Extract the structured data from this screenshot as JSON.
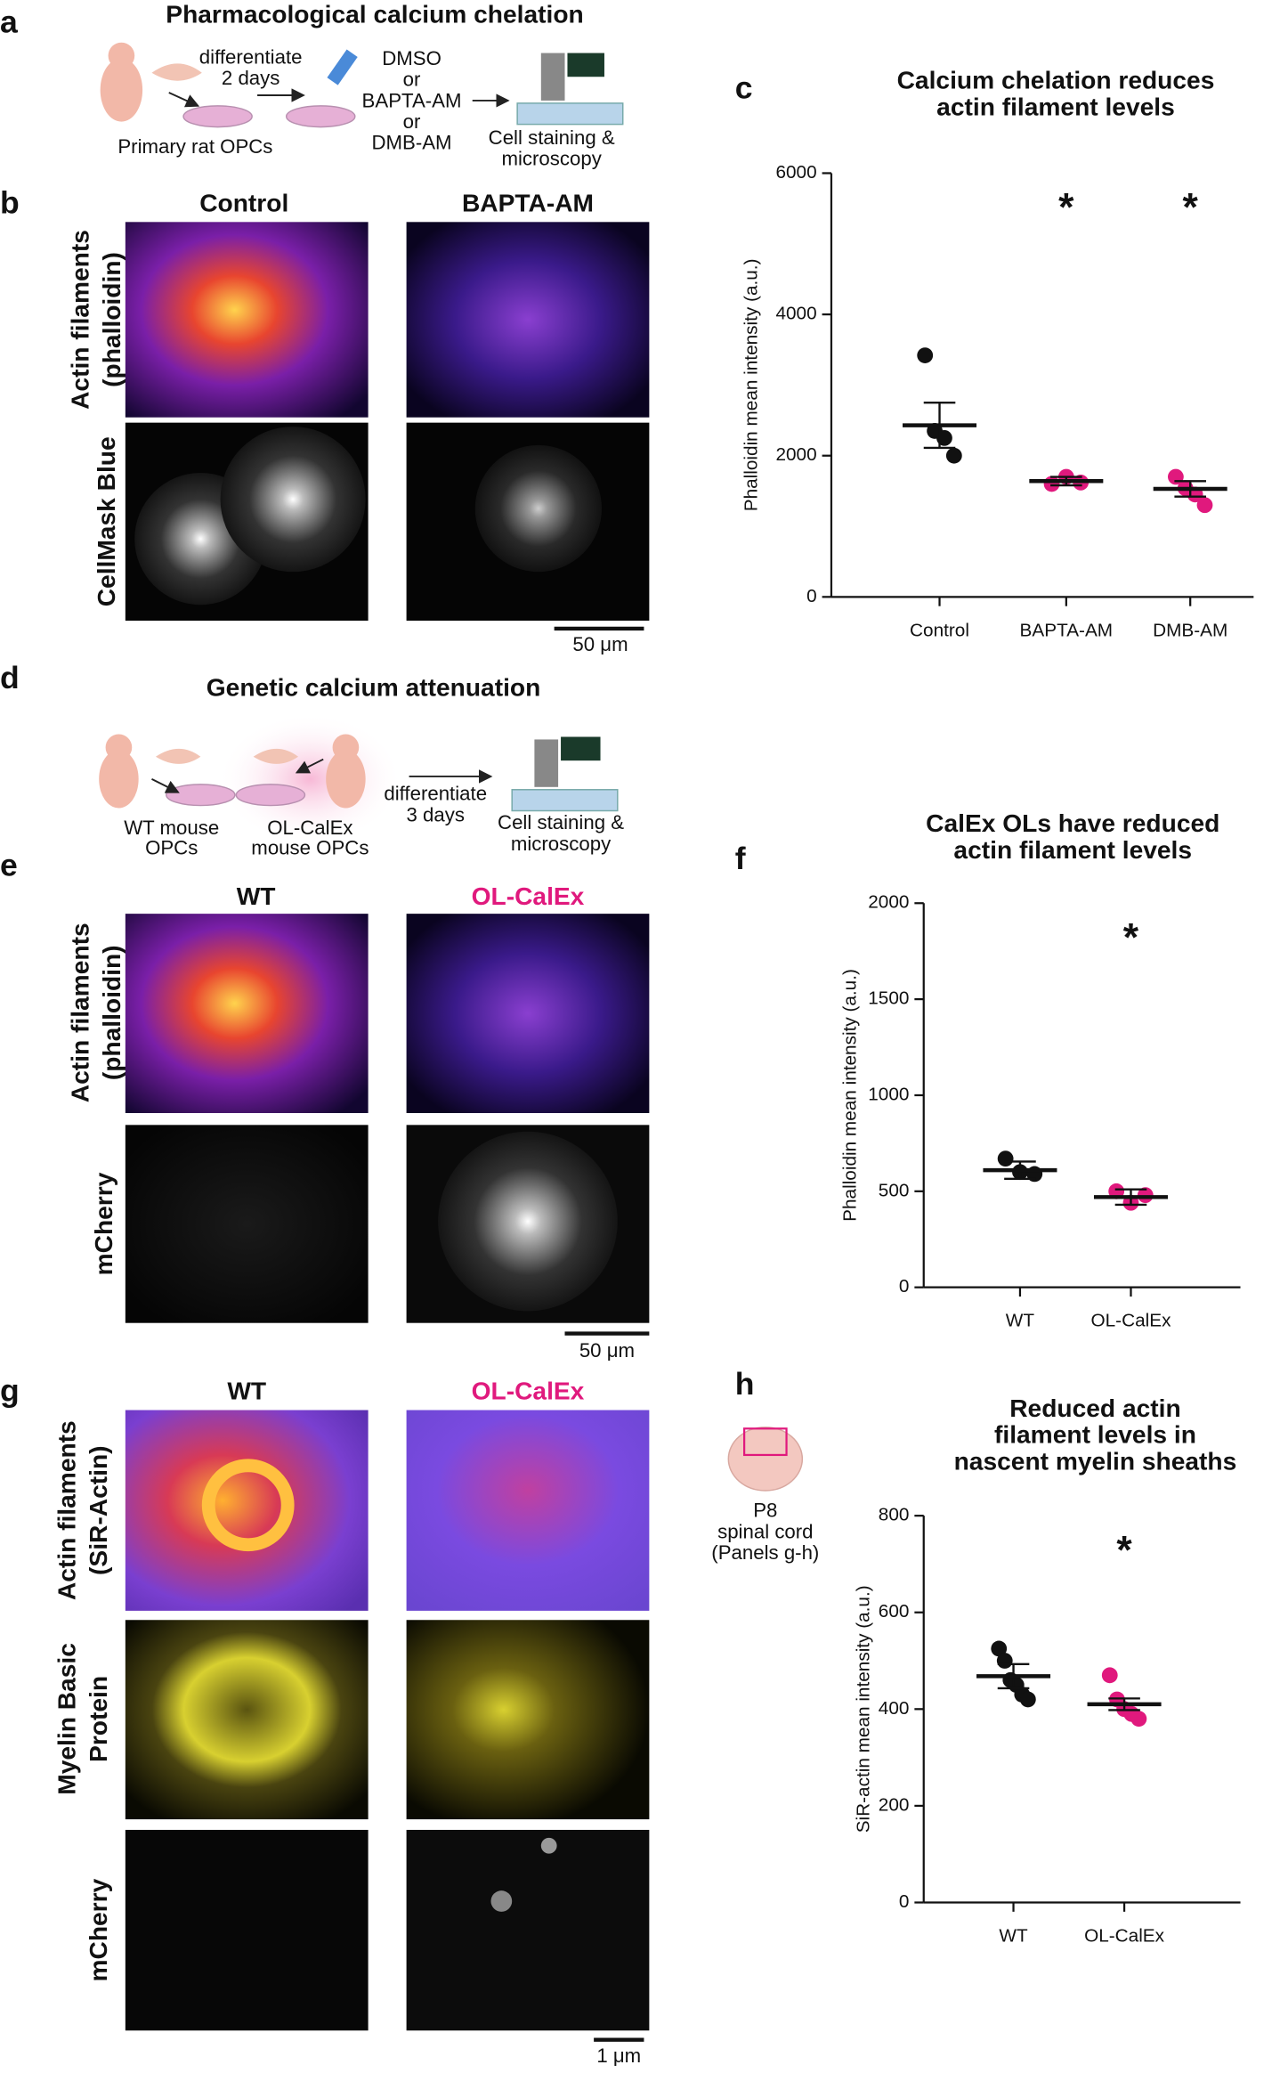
{
  "panels": {
    "a": {
      "letter": "a",
      "title": "Pharmacological calcium chelation",
      "step": [
        "differentiate",
        "2 days"
      ],
      "treatments": [
        "DMSO",
        "or",
        "BAPTA-AM",
        "or",
        "DMB-AM"
      ],
      "source": "Primary rat OPCs",
      "readout": [
        "Cell staining &",
        "microscopy"
      ]
    },
    "b": {
      "letter": "b",
      "columns": [
        "Control",
        "BAPTA-AM"
      ],
      "rows": [
        [
          "Actin filaments",
          "(phalloidin)"
        ],
        [
          "CellMask Blue"
        ]
      ],
      "scale": "50 μm"
    },
    "c": {
      "letter": "c"
    },
    "d": {
      "letter": "d",
      "title": "Genetic calcium attenuation",
      "sources": [
        [
          "WT mouse",
          "OPCs"
        ],
        [
          "OL-CalEx",
          "mouse OPCs"
        ]
      ],
      "step": [
        "differentiate",
        "3 days"
      ],
      "readout": [
        "Cell staining &",
        "microscopy"
      ]
    },
    "e": {
      "letter": "e",
      "columns": [
        "WT",
        "OL-CalEx"
      ],
      "rows": [
        [
          "Actin filaments",
          "(phalloidin)"
        ],
        [
          "mCherry"
        ]
      ],
      "scale": "50 μm"
    },
    "f": {
      "letter": "f"
    },
    "g": {
      "letter": "g",
      "columns": [
        "WT",
        "OL-CalEx"
      ],
      "rows": [
        [
          "Actin filaments",
          "(SiR-Actin)"
        ],
        [
          "Myelin Basic",
          "Protein"
        ],
        [
          "mCherry"
        ]
      ],
      "scale": "1 μm"
    },
    "h": {
      "letter": "h",
      "tissue": [
        "P8",
        "spinal cord",
        "(Panels g-h)"
      ]
    }
  },
  "chart_data": [
    {
      "type": "dotplot",
      "title": [
        "Calcium chelation reduces",
        "actin filament levels"
      ],
      "ylabel": "Phalloidin mean intensity (a.u.)",
      "categories": [
        "Control",
        "BAPTA-AM",
        "DMB-AM"
      ],
      "ylim": [
        0,
        6000
      ],
      "yticks": [
        0,
        2000,
        4000,
        6000
      ],
      "means": [
        2430,
        1640,
        1530
      ],
      "sem": [
        320,
        60,
        110
      ],
      "replicates": [
        [
          3420,
          2350,
          2250,
          2000
        ],
        [
          1600,
          1700,
          1620
        ],
        [
          1700,
          1540,
          1450,
          1300
        ]
      ],
      "replicate_colors": [
        "#111111",
        "#e0197d",
        "#e0197d"
      ],
      "significance": [
        null,
        "*",
        "*"
      ]
    },
    {
      "type": "dotplot",
      "title": [
        "CalEx OLs have reduced",
        "actin filament levels"
      ],
      "ylabel": "Phalloidin mean intensity (a.u.)",
      "categories": [
        "WT",
        "OL-CalEx"
      ],
      "ylim": [
        0,
        2000
      ],
      "yticks": [
        0,
        500,
        1000,
        1500,
        2000
      ],
      "means": [
        610,
        470
      ],
      "sem": [
        45,
        40
      ],
      "replicates": [
        [
          670,
          600,
          590
        ],
        [
          500,
          440,
          480
        ]
      ],
      "replicate_colors": [
        "#111111",
        "#e0197d"
      ],
      "significance": [
        null,
        "*"
      ]
    },
    {
      "type": "dotplot",
      "title": [
        "Reduced actin",
        "filament levels in",
        "nascent myelin sheaths"
      ],
      "ylabel": "SiR-actin mean intensity (a.u.)",
      "categories": [
        "WT",
        "OL-CalEx"
      ],
      "ylim": [
        0,
        800
      ],
      "yticks": [
        0,
        200,
        400,
        600,
        800
      ],
      "means": [
        468,
        410
      ],
      "sem": [
        25,
        12
      ],
      "replicates": [
        [
          525,
          500,
          460,
          450,
          430,
          420
        ],
        [
          470,
          420,
          400,
          390,
          380
        ]
      ],
      "replicate_colors": [
        "#111111",
        "#e0197d"
      ],
      "significance": [
        null,
        "*"
      ]
    }
  ]
}
